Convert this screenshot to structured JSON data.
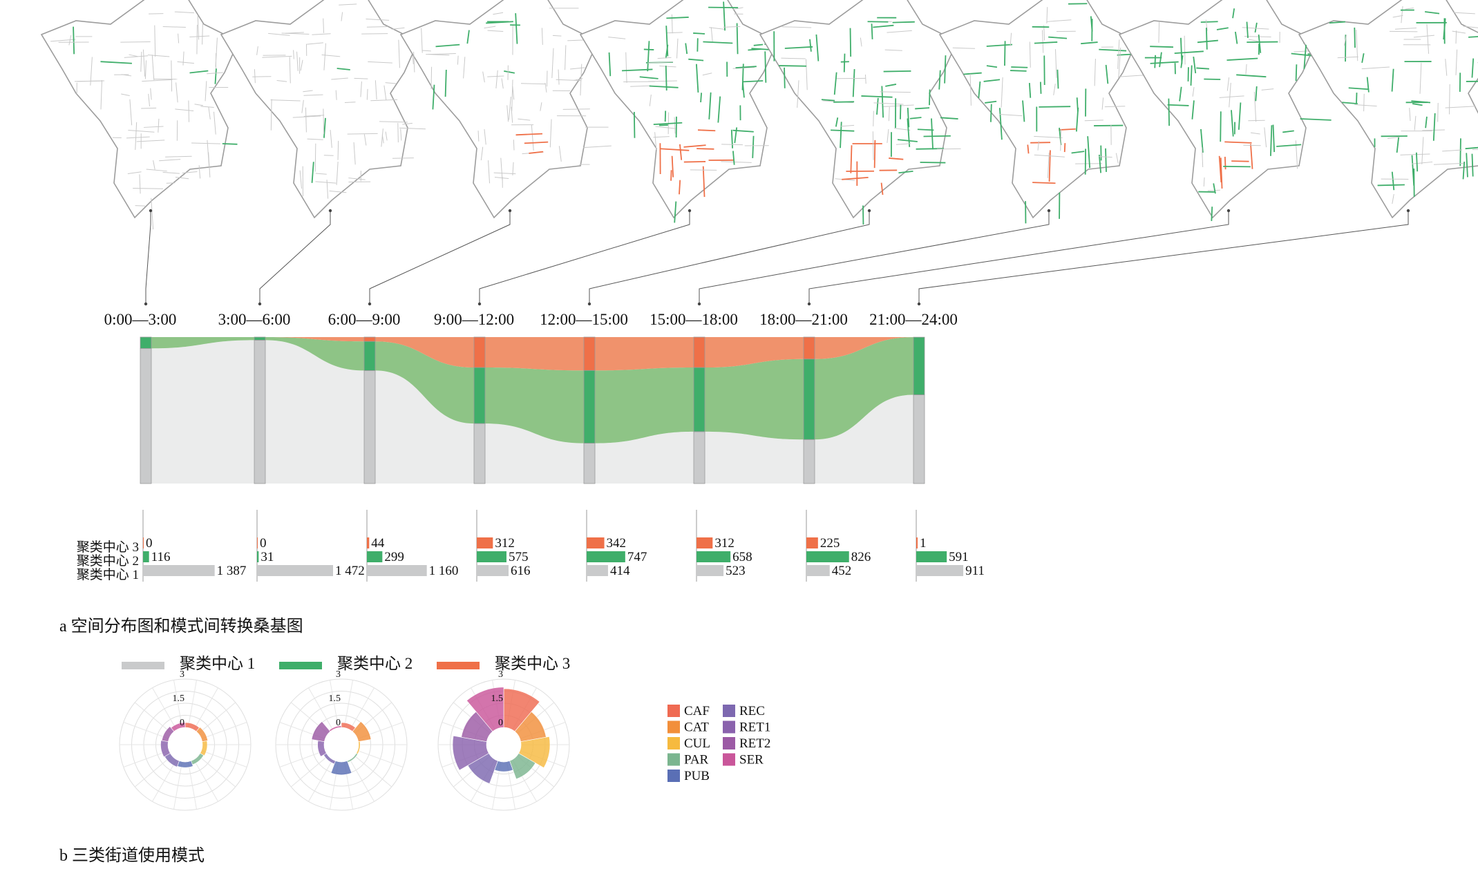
{
  "chart_data": [
    {
      "type": "sankey",
      "time_slots": [
        "0:00—3:00",
        "3:00—6:00",
        "6:00—9:00",
        "9:00—12:00",
        "12:00—15:00",
        "15:00—18:00",
        "18:00—21:00",
        "21:00—24:00"
      ],
      "clusters": [
        "聚类中心 1",
        "聚类中心 2",
        "聚类中心 3"
      ],
      "colors": {
        "c1": "#c9cacb",
        "c2": "#3fae6a",
        "c3": "#ef7048",
        "flow_c1": "#ebecec",
        "flow_c2": "#8ec486",
        "flow_c3": "#f0926c"
      }
    },
    {
      "type": "bar",
      "orientation": "horizontal",
      "categories": [
        "聚类中心 3",
        "聚类中心 2",
        "聚类中心 1"
      ],
      "series": [
        {
          "name": "0:00—3:00",
          "values": [
            0,
            116,
            1387
          ],
          "labels": [
            "0",
            "116",
            "1 387"
          ]
        },
        {
          "name": "3:00—6:00",
          "values": [
            0,
            31,
            1472
          ],
          "labels": [
            "0",
            "31",
            "1 472"
          ]
        },
        {
          "name": "6:00—9:00",
          "values": [
            44,
            299,
            1160
          ],
          "labels": [
            "44",
            "299",
            "1 160"
          ]
        },
        {
          "name": "9:00—12:00",
          "values": [
            312,
            575,
            616
          ],
          "labels": [
            "312",
            "575",
            "616"
          ]
        },
        {
          "name": "12:00—15:00",
          "values": [
            342,
            747,
            414
          ],
          "labels": [
            "342",
            "747",
            "414"
          ]
        },
        {
          "name": "15:00—18:00",
          "values": [
            312,
            658,
            523
          ],
          "labels": [
            "312",
            "658",
            "523"
          ]
        },
        {
          "name": "18:00—21:00",
          "values": [
            225,
            826,
            452
          ],
          "labels": [
            "225",
            "826",
            "452"
          ]
        },
        {
          "name": "21:00—24:00",
          "values": [
            1,
            591,
            911
          ],
          "labels": [
            "1",
            "591",
            "911"
          ]
        }
      ]
    },
    {
      "type": "polar-bar",
      "radial_ticks": [
        "3",
        "1.5",
        "0"
      ],
      "rlim": [
        0,
        3
      ],
      "categories": [
        "CAF",
        "CAT",
        "CUL",
        "PAR",
        "PUB",
        "REC",
        "RET1",
        "RET2",
        "SER"
      ],
      "series": [
        {
          "name": "聚类中心 1",
          "values": [
            0.3,
            0.35,
            0.3,
            0.25,
            0.35,
            0.4,
            0.45,
            0.4,
            0.3
          ]
        },
        {
          "name": "聚类中心 2",
          "values": [
            0.3,
            0.8,
            0.1,
            0.1,
            0.8,
            0.2,
            0.4,
            0.8,
            0.1
          ]
        },
        {
          "name": "聚类中心 3",
          "values": [
            2.4,
            1.6,
            1.8,
            1.2,
            0.6,
            1.5,
            2.1,
            1.6,
            2.5
          ]
        }
      ]
    }
  ],
  "captions": {
    "a": "a  空间分布图和模式间转换桑基图",
    "b": "b  三类街道使用模式"
  },
  "legend_clusters": [
    {
      "label": "聚类中心 1",
      "color": "#c9cacb"
    },
    {
      "label": "聚类中心 2",
      "color": "#3fae6a"
    },
    {
      "label": "聚类中心 3",
      "color": "#ef7048"
    }
  ],
  "legend_categories": [
    {
      "label": "CAF",
      "color": "#ef6a52"
    },
    {
      "label": "CAT",
      "color": "#f28f3b"
    },
    {
      "label": "CUL",
      "color": "#f6ba3f"
    },
    {
      "label": "PAR",
      "color": "#7bb58f"
    },
    {
      "label": "PUB",
      "color": "#5a6fb5"
    },
    {
      "label": "REC",
      "color": "#7d68b0"
    },
    {
      "label": "RET1",
      "color": "#8a62ad"
    },
    {
      "label": "RET2",
      "color": "#9c5aa5"
    },
    {
      "label": "SER",
      "color": "#c9569a"
    }
  ]
}
